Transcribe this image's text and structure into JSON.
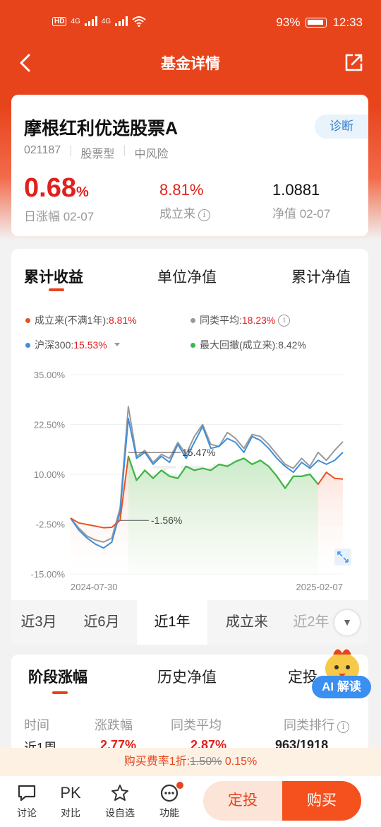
{
  "status_bar": {
    "network": "4G",
    "battery": "93%",
    "time": "12:33"
  },
  "nav": {
    "title": "基金详情"
  },
  "fund": {
    "name": "摩根红利优选股票A",
    "code": "021187",
    "type": "股票型",
    "risk": "中风险",
    "diagnose_label": "诊断",
    "daily_change": "0.68",
    "daily_change_unit": "%",
    "daily_change_label": "日涨幅 02-07",
    "since_inception": "8.81%",
    "since_inception_label": "成立来",
    "nav_value": "1.0881",
    "nav_label": "净值 02-07"
  },
  "chart_tabs": [
    "累计收益",
    "单位净值",
    "累计净值"
  ],
  "legend": {
    "fund": {
      "label": "成立来(不满1年):",
      "value": "8.81%",
      "color": "#e8521f"
    },
    "peer": {
      "label": "同类平均:",
      "value": "18.23%",
      "color": "#999999"
    },
    "index": {
      "label": "沪深300:",
      "value": "15.53%",
      "color": "#3f8fdc"
    },
    "drawdown": {
      "label": "最大回撤(成立来):",
      "value": "8.42%",
      "color": "#3ab84a"
    }
  },
  "chart_data": {
    "type": "line",
    "x_range": [
      "2024-07-30",
      "2025-02-07"
    ],
    "y_ticks": [
      "35.00%",
      "22.50%",
      "10.00%",
      "-2.50%",
      "-15.00%"
    ],
    "ylim": [
      -15,
      35
    ],
    "annotations": [
      "15.47%",
      "-1.56%"
    ],
    "watermark": "天天基金",
    "series": [
      {
        "name": "成立来",
        "color": "#e8521f",
        "values": [
          -1.0,
          -2.2,
          -2.6,
          -3.0,
          -3.4,
          -3.3,
          -1.5,
          14.5,
          8.5,
          11.0,
          9.0,
          11.0,
          9.5,
          9.0,
          12.0,
          11.0,
          11.5,
          11.0,
          12.5,
          12.0,
          13.2,
          14.0,
          12.5,
          13.5,
          12.0,
          9.5,
          6.5,
          9.5,
          9.5,
          10.0,
          7.5,
          10.5,
          9.0,
          8.8
        ]
      },
      {
        "name": "同类平均",
        "color": "#999999",
        "values": [
          -1.0,
          -3.5,
          -5.5,
          -6.5,
          -7.0,
          -6.0,
          1.5,
          27.0,
          14.5,
          16.0,
          13.0,
          15.0,
          14.0,
          18.0,
          15.0,
          19.5,
          22.5,
          17.5,
          17.0,
          20.5,
          19.0,
          16.5,
          20.0,
          19.5,
          17.5,
          15.0,
          12.5,
          11.5,
          14.0,
          12.0,
          15.5,
          13.5,
          16.0,
          18.2
        ]
      },
      {
        "name": "沪深300",
        "color": "#3f8fdc",
        "values": [
          -1.0,
          -4.0,
          -6.0,
          -7.5,
          -8.5,
          -7.0,
          0.5,
          24.0,
          14.0,
          15.5,
          12.5,
          14.5,
          13.0,
          17.5,
          14.0,
          18.0,
          22.0,
          16.5,
          17.0,
          19.0,
          18.0,
          15.5,
          19.5,
          18.5,
          16.5,
          14.0,
          12.0,
          10.5,
          13.0,
          11.5,
          13.5,
          12.5,
          13.5,
          15.5
        ]
      },
      {
        "name": "最大回撤",
        "color": "#3ab84a",
        "range_start_index": 7,
        "range_end_index": 30
      }
    ]
  },
  "periods": [
    "近3月",
    "近6月",
    "近1年",
    "成立来",
    "近2年"
  ],
  "stage_tabs": [
    "阶段涨幅",
    "历史净值",
    "定投"
  ],
  "stage_table": {
    "headers": [
      "时间",
      "涨跌幅",
      "同类平均",
      "同类排行"
    ],
    "row": [
      "近1周",
      "2.77%",
      "2.87%",
      "963/1918"
    ]
  },
  "ai_label": "AI 解读",
  "fee": {
    "prefix": "购买费率1折:",
    "original": "1.50%",
    "current": "0.15%"
  },
  "bottom_bar": {
    "discuss": "讨论",
    "compare_glyph": "PK",
    "compare": "对比",
    "watch": "设自选",
    "functions": "功能",
    "dingtou": "定投",
    "buy": "购买"
  }
}
